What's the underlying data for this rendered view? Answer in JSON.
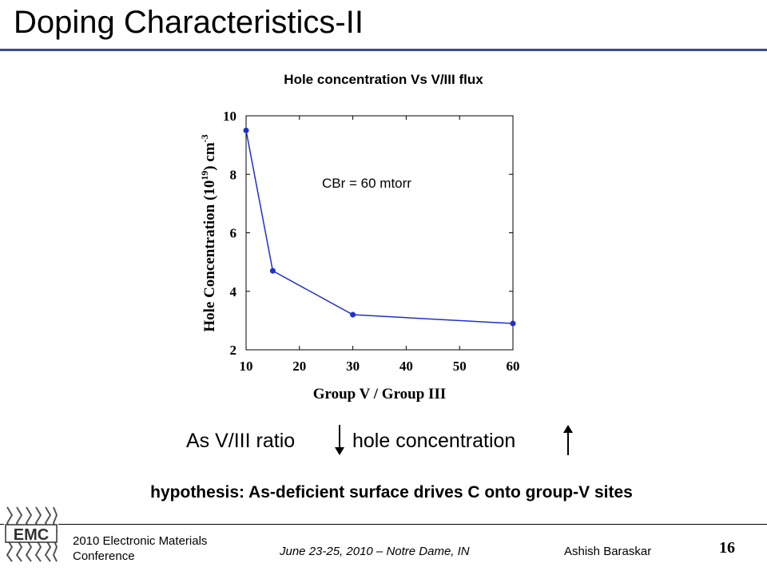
{
  "slide": {
    "title": "Doping Characteristics-II",
    "statement_left": "As V/III ratio",
    "statement_right": "hole concentration",
    "hypothesis": "hypothesis: As-deficient surface drives C onto group-V sites"
  },
  "footer": {
    "conference": "2010 Electronic Materials Conference",
    "date": "June 23-25, 2010 – Notre Dame, IN",
    "author": "Ashish Baraskar",
    "page": "16",
    "logo_text": "EMC"
  },
  "chart_data": {
    "type": "line",
    "title": "Hole concentration Vs V/III flux",
    "xlabel": "Group V / Group III",
    "ylabel_main": "Hole Concentration (10",
    "ylabel_sup1": "19",
    "ylabel_mid": ") cm",
    "ylabel_sup2": "-3",
    "annotation": "CBr = 60 mtorr",
    "xlim": [
      10,
      60
    ],
    "ylim": [
      2,
      10
    ],
    "xticks": [
      10,
      20,
      30,
      40,
      50,
      60
    ],
    "yticks": [
      2,
      4,
      6,
      8,
      10
    ],
    "grid": false,
    "color": "#1f2fd0",
    "series": [
      {
        "x": [
          10,
          15,
          30,
          60
        ],
        "y": [
          9.5,
          4.7,
          3.2,
          2.9
        ]
      }
    ]
  }
}
